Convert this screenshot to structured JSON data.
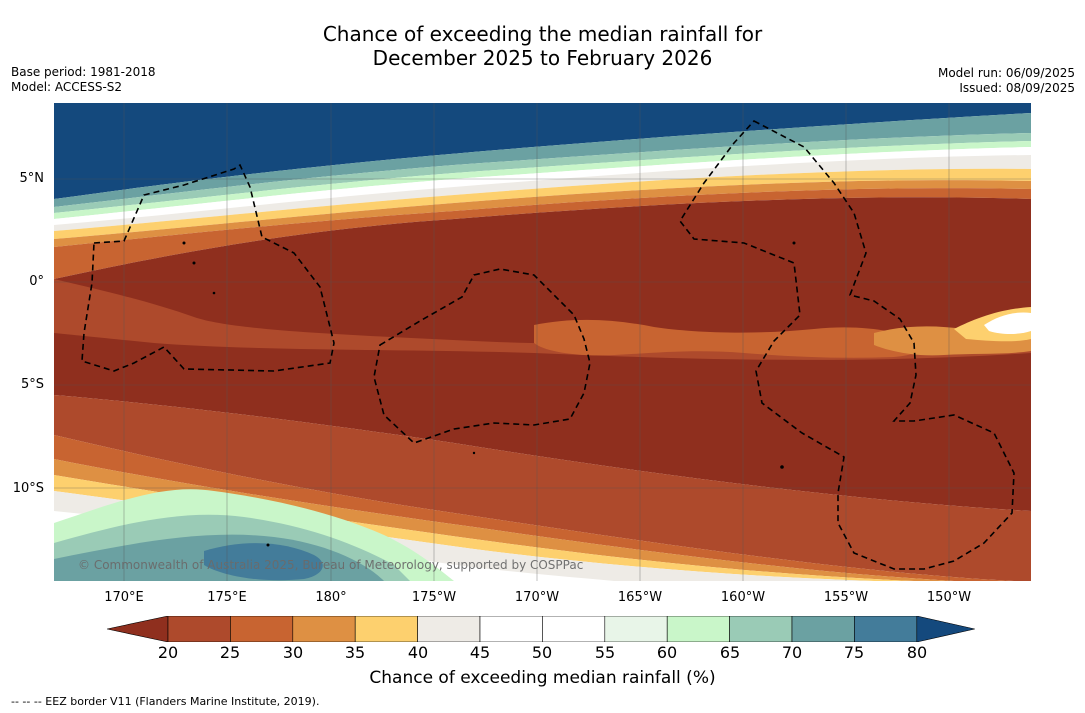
{
  "title": {
    "line1": "Chance of exceeding the median rainfall for",
    "line2": "December 2025 to February 2026"
  },
  "meta": {
    "base_period": "Base period: 1981-2018",
    "model": "Model: ACCESS-S2",
    "model_run": "Model run: 06/09/2025",
    "issued": "Issued: 08/09/2025"
  },
  "map": {
    "copyright": "© Commonwealth of Australia 2025, Bureau of Meteorology, supported by COSPPac",
    "lat_labels": [
      "5°N",
      "0°",
      "5°S",
      "10°S"
    ],
    "lon_labels": [
      "170°E",
      "175°E",
      "180°",
      "175°W",
      "170°W",
      "165°W",
      "160°W",
      "155°W",
      "150°W"
    ],
    "palette": {
      "lt20": "#8f2f1e",
      "c20_25": "#ae4a2c",
      "c25_30": "#c86431",
      "c30_35": "#de9043",
      "c35_40": "#fdd06e",
      "c40_45": "#eeebe6",
      "c45_55": "#ffffff",
      "c55_60": "#e8f5e8",
      "c60_65": "#c9f6c9",
      "c65_70": "#9acbb6",
      "c70_75": "#6ba1a2",
      "c75_80": "#437c9a",
      "gt80": "#14497d"
    },
    "eez_line_color": "#000000"
  },
  "colorbar": {
    "colors": [
      "#8f2f1e",
      "#ae4a2c",
      "#c86431",
      "#de9043",
      "#fdd06e",
      "#eeebe6",
      "#ffffff",
      "#ffffff",
      "#e8f5e8",
      "#c9f6c9",
      "#9acbb6",
      "#6ba1a2",
      "#437c9a",
      "#14497d"
    ],
    "ticks": [
      "20",
      "25",
      "30",
      "35",
      "40",
      "45",
      "50",
      "55",
      "60",
      "65",
      "70",
      "75",
      "80"
    ],
    "label": "Chance of exceeding median rainfall (%)"
  },
  "footer": "-- -- -- EEZ border V11 (Flanders Marine Institute, 2019)."
}
